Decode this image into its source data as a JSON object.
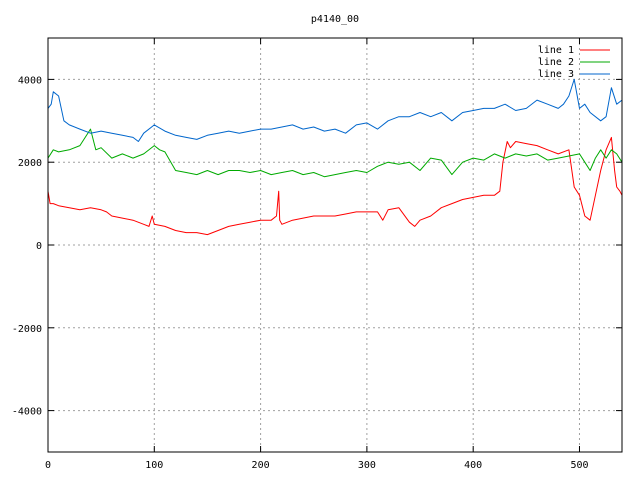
{
  "chart_data": {
    "type": "line",
    "title": "p4140_00",
    "xlabel": "",
    "ylabel": "",
    "xlim": [
      0,
      540
    ],
    "ylim": [
      -5000,
      5000
    ],
    "xticks": [
      0,
      100,
      200,
      300,
      400,
      500
    ],
    "yticks": [
      -4000,
      -2000,
      0,
      2000,
      4000
    ],
    "grid": true,
    "legend_position": "top-right",
    "series": [
      {
        "name": "line 1",
        "color": "#ff0000",
        "x": [
          0,
          2,
          5,
          10,
          20,
          30,
          40,
          50,
          55,
          60,
          70,
          80,
          90,
          95,
          98,
          100,
          110,
          120,
          130,
          140,
          150,
          160,
          170,
          180,
          190,
          200,
          210,
          215,
          217,
          218,
          220,
          230,
          240,
          250,
          260,
          270,
          280,
          290,
          300,
          310,
          315,
          320,
          330,
          340,
          345,
          350,
          360,
          370,
          380,
          390,
          400,
          410,
          420,
          425,
          428,
          432,
          435,
          440,
          450,
          460,
          470,
          480,
          490,
          495,
          500,
          505,
          510,
          515,
          520,
          525,
          530,
          533,
          535,
          538,
          540
        ],
        "y": [
          1300,
          1000,
          1000,
          950,
          900,
          850,
          900,
          850,
          800,
          700,
          650,
          600,
          500,
          450,
          700,
          500,
          450,
          350,
          300,
          300,
          250,
          350,
          450,
          500,
          550,
          600,
          600,
          700,
          1300,
          600,
          500,
          600,
          650,
          700,
          700,
          700,
          750,
          800,
          800,
          800,
          600,
          850,
          900,
          550,
          450,
          600,
          700,
          900,
          1000,
          1100,
          1150,
          1200,
          1200,
          1300,
          2000,
          2500,
          2350,
          2500,
          2450,
          2400,
          2300,
          2200,
          2300,
          1400,
          1200,
          700,
          600,
          1200,
          1800,
          2300,
          2600,
          1800,
          1400,
          1300,
          1200
        ]
      },
      {
        "name": "line 2",
        "color": "#00aa00",
        "x": [
          0,
          5,
          10,
          20,
          30,
          35,
          40,
          45,
          50,
          60,
          70,
          80,
          90,
          100,
          105,
          110,
          120,
          130,
          140,
          150,
          160,
          170,
          180,
          190,
          200,
          210,
          220,
          230,
          240,
          250,
          260,
          270,
          280,
          290,
          300,
          310,
          320,
          330,
          340,
          350,
          360,
          370,
          380,
          390,
          400,
          410,
          420,
          430,
          440,
          450,
          460,
          470,
          480,
          490,
          500,
          505,
          510,
          515,
          520,
          525,
          530,
          535,
          540
        ],
        "y": [
          2100,
          2300,
          2250,
          2300,
          2400,
          2600,
          2800,
          2300,
          2350,
          2100,
          2200,
          2100,
          2200,
          2400,
          2300,
          2250,
          1800,
          1750,
          1700,
          1800,
          1700,
          1800,
          1800,
          1750,
          1800,
          1700,
          1750,
          1800,
          1700,
          1750,
          1650,
          1700,
          1750,
          1800,
          1750,
          1900,
          2000,
          1950,
          2000,
          1800,
          2100,
          2050,
          1700,
          2000,
          2100,
          2050,
          2200,
          2100,
          2200,
          2150,
          2200,
          2050,
          2100,
          2150,
          2200,
          2000,
          1800,
          2100,
          2300,
          2100,
          2300,
          2200,
          2000
        ]
      },
      {
        "name": "line 3",
        "color": "#0066cc",
        "x": [
          0,
          3,
          5,
          10,
          15,
          20,
          30,
          40,
          50,
          60,
          70,
          80,
          85,
          90,
          100,
          110,
          120,
          130,
          140,
          150,
          160,
          170,
          180,
          190,
          200,
          210,
          220,
          230,
          240,
          250,
          260,
          270,
          280,
          290,
          300,
          310,
          320,
          330,
          340,
          350,
          360,
          370,
          380,
          390,
          400,
          410,
          420,
          430,
          440,
          450,
          460,
          470,
          480,
          485,
          490,
          495,
          500,
          505,
          510,
          520,
          525,
          530,
          535,
          540
        ],
        "y": [
          3300,
          3400,
          3700,
          3600,
          3000,
          2900,
          2800,
          2700,
          2750,
          2700,
          2650,
          2600,
          2500,
          2700,
          2900,
          2750,
          2650,
          2600,
          2550,
          2650,
          2700,
          2750,
          2700,
          2750,
          2800,
          2800,
          2850,
          2900,
          2800,
          2850,
          2750,
          2800,
          2700,
          2900,
          2950,
          2800,
          3000,
          3100,
          3100,
          3200,
          3100,
          3200,
          3000,
          3200,
          3250,
          3300,
          3300,
          3400,
          3250,
          3300,
          3500,
          3400,
          3300,
          3400,
          3600,
          4000,
          3300,
          3400,
          3200,
          3000,
          3100,
          3800,
          3400,
          3500
        ]
      }
    ]
  }
}
